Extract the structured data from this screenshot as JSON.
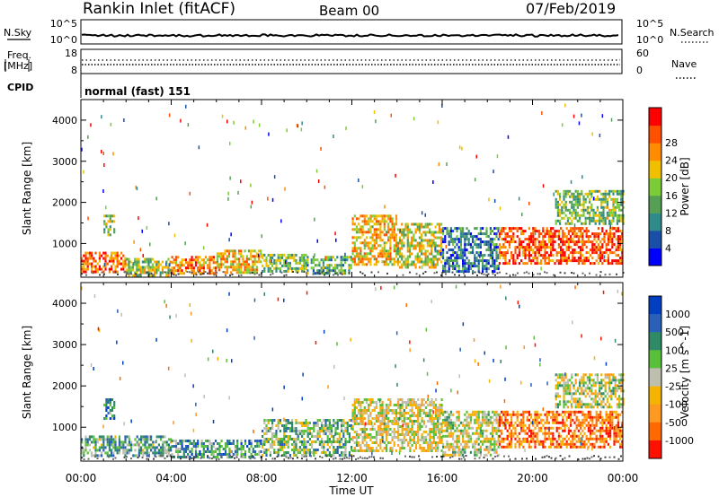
{
  "header": {
    "station": "Rankin Inlet (fitACF)",
    "beam": "Beam 00",
    "date": "07/Feb/2019"
  },
  "top_panels": {
    "nsky": {
      "label": "N.Sky",
      "right_label": "N.Search",
      "ticks": [
        "10^5",
        "10^0"
      ],
      "right_ticks": [
        "10^5",
        "10^0"
      ]
    },
    "freq": {
      "label_1": "Freq.",
      "label_2": "[MHz]",
      "right_label": "Nave",
      "ticks": [
        "18",
        "8"
      ],
      "right_ticks": [
        "60",
        "0"
      ]
    },
    "cpid": {
      "label": "CPID",
      "mode": "normal (fast) 151"
    }
  },
  "chart_data": [
    {
      "type": "heatmap",
      "name": "power",
      "ylabel": "Slant Range [km]",
      "ylim": [
        180,
        4500
      ],
      "yticks": [
        1000,
        2000,
        3000,
        4000
      ],
      "xlim": [
        0,
        24
      ],
      "xticks": [
        "00:00",
        "04:00",
        "08:00",
        "12:00",
        "16:00",
        "20:00",
        "00:00"
      ],
      "colorbar": {
        "label": "Power [dB]",
        "ticks": [
          "4",
          "8",
          "12",
          "16",
          "20",
          "24",
          "28"
        ],
        "colors": [
          "#0000ff",
          "#1a4fa8",
          "#2f8a8a",
          "#55a055",
          "#7ccc3a",
          "#f0c000",
          "#ff8c00",
          "#ff5000",
          "#ff0000"
        ]
      },
      "regions": [
        {
          "x": [
            0.0,
            2.0
          ],
          "y": [
            300,
            800
          ],
          "level": 0.8
        },
        {
          "x": [
            1.0,
            1.5
          ],
          "y": [
            1200,
            1700
          ],
          "level": 0.45
        },
        {
          "x": [
            2.0,
            4.0
          ],
          "y": [
            250,
            650
          ],
          "level": 0.5
        },
        {
          "x": [
            4.0,
            6.0
          ],
          "y": [
            250,
            700
          ],
          "level": 0.75
        },
        {
          "x": [
            6.0,
            8.0
          ],
          "y": [
            300,
            850
          ],
          "level": 0.65
        },
        {
          "x": [
            8.0,
            10.0
          ],
          "y": [
            300,
            750
          ],
          "level": 0.45
        },
        {
          "x": [
            10.0,
            12.0
          ],
          "y": [
            300,
            700
          ],
          "level": 0.4
        },
        {
          "x": [
            12.0,
            14.0
          ],
          "y": [
            500,
            1700
          ],
          "level": 0.65
        },
        {
          "x": [
            14.0,
            16.0
          ],
          "y": [
            400,
            1500
          ],
          "level": 0.55
        },
        {
          "x": [
            16.0,
            18.5
          ],
          "y": [
            300,
            1400
          ],
          "level": 0.25
        },
        {
          "x": [
            18.5,
            24.0
          ],
          "y": [
            500,
            1400
          ],
          "level": 0.85
        },
        {
          "x": [
            21.0,
            24.0
          ],
          "y": [
            1500,
            2300
          ],
          "level": 0.45
        }
      ],
      "sparse_echo_fraction": 0.01
    },
    {
      "type": "heatmap",
      "name": "velocity",
      "ylabel": "Slant Range [km]",
      "xlabel": "Time UT",
      "ylim": [
        180,
        4500
      ],
      "yticks": [
        1000,
        2000,
        3000,
        4000
      ],
      "xlim": [
        0,
        24
      ],
      "xticks": [
        "00:00",
        "04:00",
        "08:00",
        "12:00",
        "16:00",
        "20:00",
        "00:00"
      ],
      "colorbar": {
        "label": "Velocity [m s^-1]",
        "ticks": [
          "1000",
          "500",
          "100",
          "25",
          "-25",
          "-100",
          "-500",
          "-1000"
        ],
        "colors": [
          "#0040c0",
          "#2a60b8",
          "#2f8a66",
          "#5abf3a",
          "#bfbfb0",
          "#f4b400",
          "#ff9a20",
          "#ff6a00",
          "#ff1000"
        ]
      },
      "regions": [
        {
          "x": [
            0.0,
            4.0
          ],
          "y": [
            300,
            800
          ],
          "level": 0.35
        },
        {
          "x": [
            1.0,
            1.5
          ],
          "y": [
            1200,
            1700
          ],
          "level": 0.3
        },
        {
          "x": [
            4.0,
            8.0
          ],
          "y": [
            300,
            700
          ],
          "level": 0.3
        },
        {
          "x": [
            8.0,
            12.0
          ],
          "y": [
            300,
            1200
          ],
          "level": 0.4
        },
        {
          "x": [
            12.0,
            16.0
          ],
          "y": [
            400,
            1700
          ],
          "level": 0.55
        },
        {
          "x": [
            16.0,
            18.5
          ],
          "y": [
            300,
            1400
          ],
          "level": 0.5
        },
        {
          "x": [
            18.5,
            24.0
          ],
          "y": [
            500,
            1400
          ],
          "level": 0.8
        },
        {
          "x": [
            21.0,
            24.0
          ],
          "y": [
            1500,
            2300
          ],
          "level": 0.5
        }
      ],
      "sparse_echo_fraction": 0.01
    }
  ]
}
